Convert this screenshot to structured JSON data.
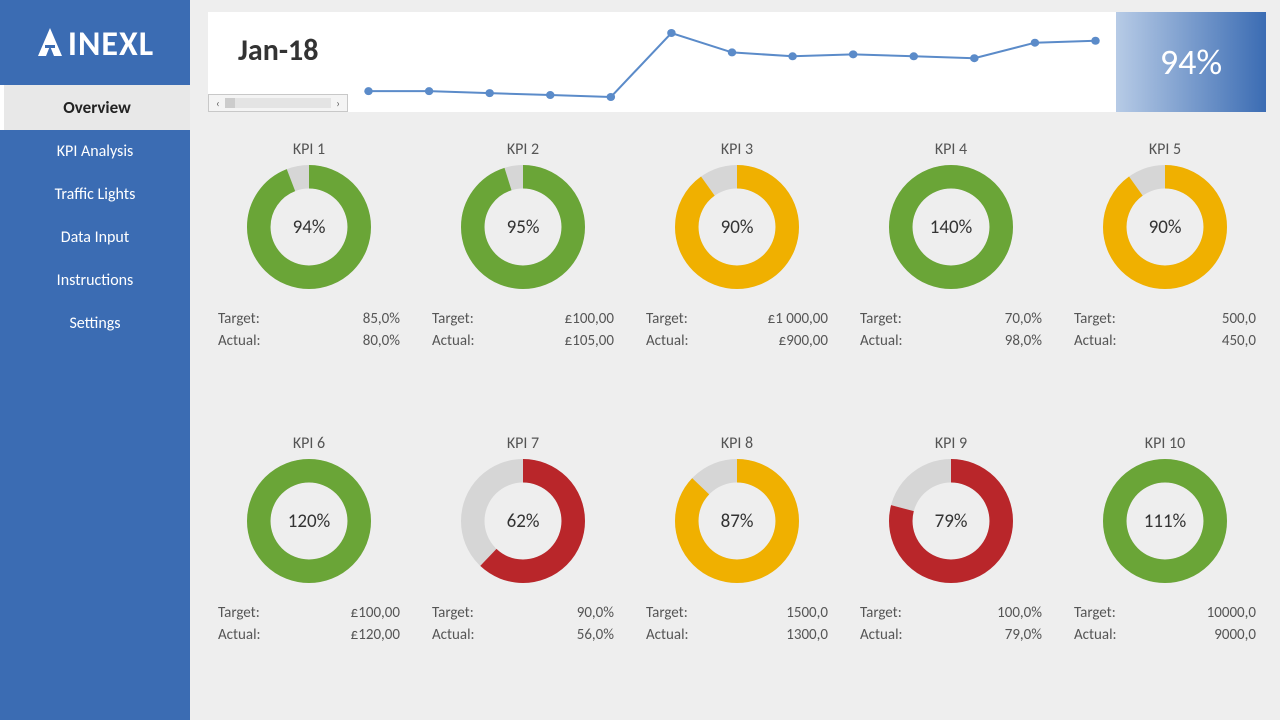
{
  "brand": "INEXL",
  "sidebar": {
    "bg": "#3b6cb3",
    "text": "#ffffff",
    "items": [
      {
        "label": "Overview",
        "active": true
      },
      {
        "label": "KPI Analysis",
        "active": false
      },
      {
        "label": "Traffic Lights",
        "active": false
      },
      {
        "label": "Data Input",
        "active": false
      },
      {
        "label": "Instructions",
        "active": false
      },
      {
        "label": "Settings",
        "active": false
      }
    ]
  },
  "header": {
    "period": "Jan-18",
    "summary_value": "94%",
    "summary_gradient_from": "#b7cbe6",
    "summary_gradient_to": "#3b6cb3",
    "sparkline": {
      "color": "#5b8bc9",
      "marker_color": "#5b8bc9",
      "marker_radius": 4,
      "line_width": 2,
      "values": [
        60,
        60,
        59,
        58,
        57,
        90,
        80,
        78,
        79,
        78,
        77,
        85,
        86
      ]
    }
  },
  "colors": {
    "green": "#6aa537",
    "amber": "#f0b000",
    "red": "#b9262a",
    "track": "#d6d6d6",
    "page_bg": "#eeeeee",
    "card_bg": "transparent",
    "text": "#555555"
  },
  "donut": {
    "outer_radius": 58,
    "thickness": 22,
    "value_fontsize": 19
  },
  "kpis": [
    {
      "name": "KPI 1",
      "pct": 94,
      "color_key": "green",
      "target_label": "Target:",
      "target": "85,0%",
      "actual_label": "Actual:",
      "actual": "80,0%"
    },
    {
      "name": "KPI 2",
      "pct": 95,
      "color_key": "green",
      "target_label": "Target:",
      "target": "£100,00",
      "actual_label": "Actual:",
      "actual": "£105,00"
    },
    {
      "name": "KPI 3",
      "pct": 90,
      "color_key": "amber",
      "target_label": "Target:",
      "target": "£1 000,00",
      "actual_label": "Actual:",
      "actual": "£900,00"
    },
    {
      "name": "KPI 4",
      "pct": 140,
      "color_key": "green",
      "target_label": "Target:",
      "target": "70,0%",
      "actual_label": "Actual:",
      "actual": "98,0%"
    },
    {
      "name": "KPI 5",
      "pct": 90,
      "color_key": "amber",
      "target_label": "Target:",
      "target": "500,0",
      "actual_label": "Actual:",
      "actual": "450,0"
    },
    {
      "name": "KPI 6",
      "pct": 120,
      "color_key": "green",
      "target_label": "Target:",
      "target": "£100,00",
      "actual_label": "Actual:",
      "actual": "£120,00"
    },
    {
      "name": "KPI 7",
      "pct": 62,
      "color_key": "red",
      "target_label": "Target:",
      "target": "90,0%",
      "actual_label": "Actual:",
      "actual": "56,0%"
    },
    {
      "name": "KPI 8",
      "pct": 87,
      "color_key": "amber",
      "target_label": "Target:",
      "target": "1500,0",
      "actual_label": "Actual:",
      "actual": "1300,0"
    },
    {
      "name": "KPI 9",
      "pct": 79,
      "color_key": "red",
      "target_label": "Target:",
      "target": "100,0%",
      "actual_label": "Actual:",
      "actual": "79,0%"
    },
    {
      "name": "KPI 10",
      "pct": 111,
      "color_key": "green",
      "target_label": "Target:",
      "target": "10000,0",
      "actual_label": "Actual:",
      "actual": "9000,0"
    }
  ]
}
